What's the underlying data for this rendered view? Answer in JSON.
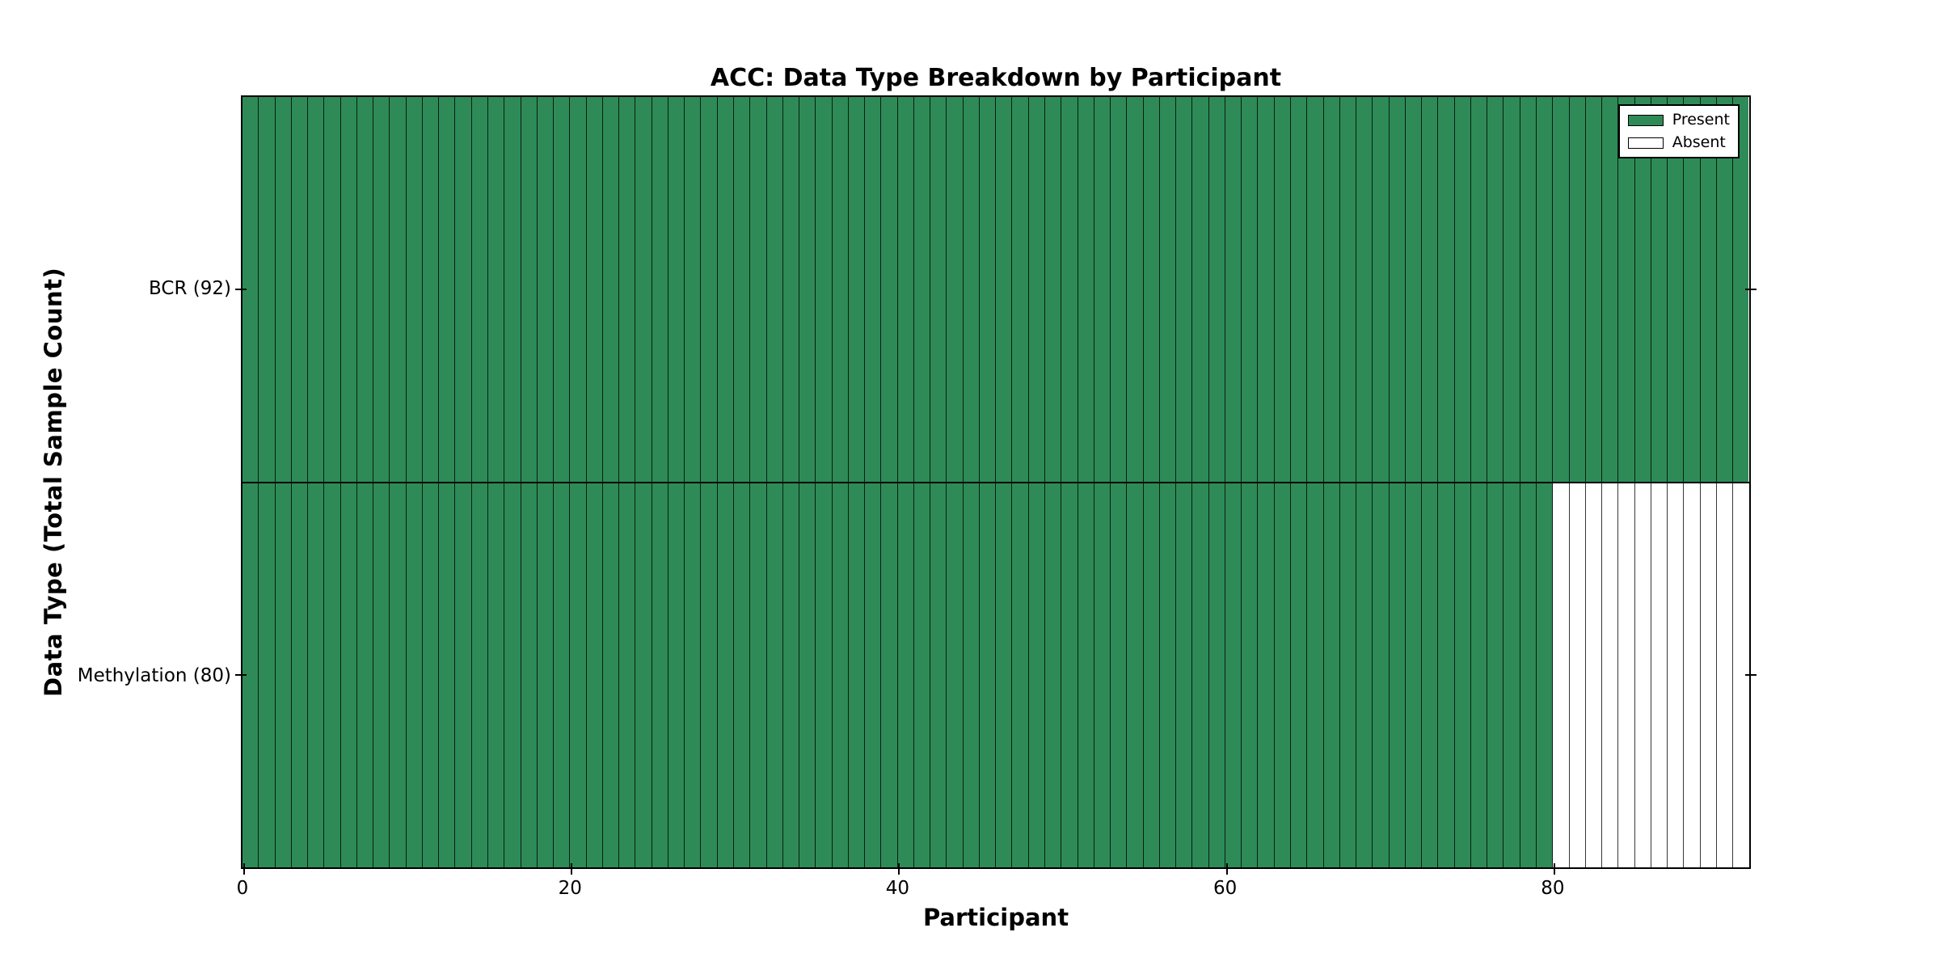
{
  "chart_data": {
    "type": "heatmap",
    "title": "ACC: Data Type Breakdown by Participant",
    "xlabel": "Participant",
    "ylabel": "Data Type (Total Sample Count)",
    "n_participants": 92,
    "xlim": [
      0,
      92
    ],
    "x_ticks": [
      0,
      20,
      40,
      60,
      80
    ],
    "grid": "cell-borders",
    "rows": [
      {
        "label": "BCR (92)",
        "data_type": "BCR",
        "total_sample_count": 92,
        "present_count": 92,
        "absent_count": 0
      },
      {
        "label": "Methylation (80)",
        "data_type": "Methylation",
        "total_sample_count": 80,
        "present_count": 80,
        "absent_count": 12
      }
    ],
    "legend": {
      "position": "upper-right",
      "entries": [
        {
          "label": "Present",
          "color": "#2e8b57"
        },
        {
          "label": "Absent",
          "color": "#ffffff"
        }
      ]
    },
    "colors": {
      "present": "#2e8b57",
      "absent": "#ffffff",
      "cell_edge": "#000000",
      "axis": "#000000",
      "background": "#ffffff"
    }
  }
}
